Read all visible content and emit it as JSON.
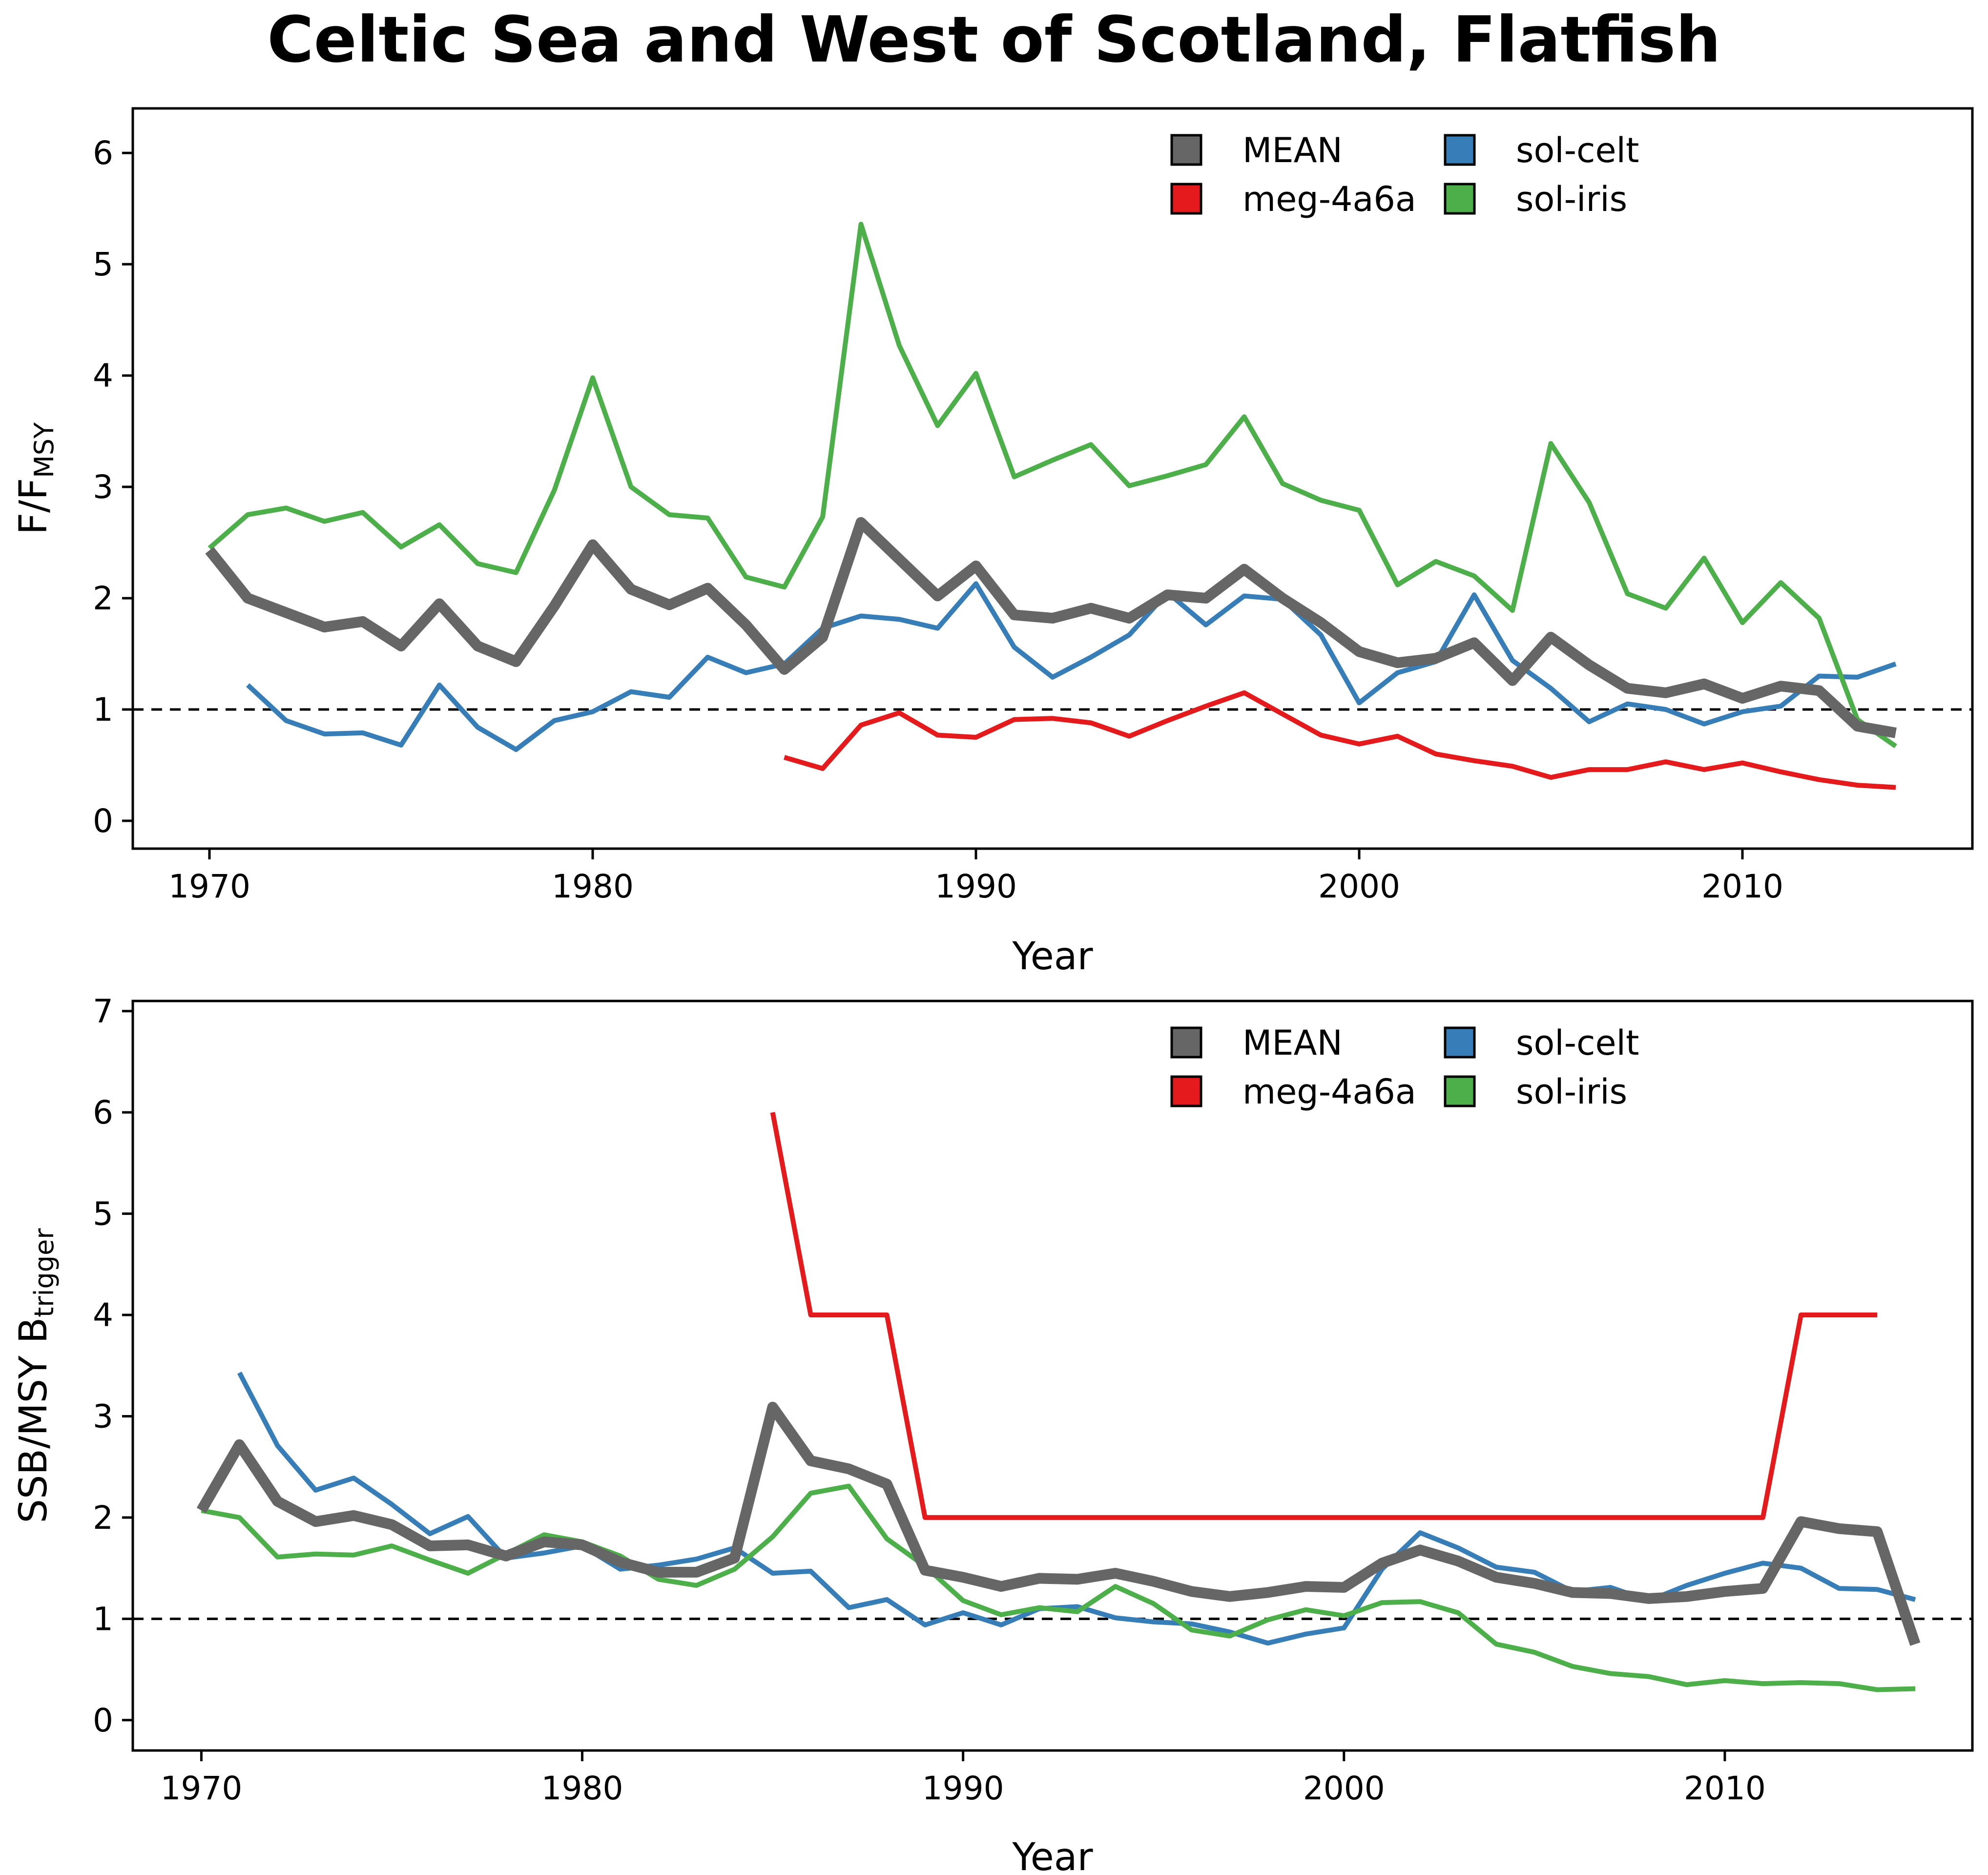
{
  "title": "Celtic Sea and West of Scotland, Flatfish",
  "chart_data": [
    {
      "type": "line",
      "xlabel": "Year",
      "ylabel_main": "F/F",
      "ylabel_sub": "MSY",
      "xlim": [
        1968,
        2016
      ],
      "ylim": [
        -0.25,
        6.4
      ],
      "xticks": [
        1970,
        1980,
        1990,
        2000,
        2010
      ],
      "yticks": [
        0,
        1,
        2,
        3,
        4,
        5,
        6
      ],
      "reference_line": 1,
      "legend_position": "top-right",
      "series": [
        {
          "name": "MEAN",
          "color": "#666666",
          "width": 22,
          "x": [
            1970,
            1971,
            1972,
            1973,
            1974,
            1975,
            1976,
            1977,
            1978,
            1979,
            1980,
            1981,
            1982,
            1983,
            1984,
            1985,
            1986,
            1987,
            1988,
            1989,
            1990,
            1991,
            1992,
            1993,
            1994,
            1995,
            1996,
            1997,
            1998,
            1999,
            2000,
            2001,
            2002,
            2003,
            2004,
            2005,
            2006,
            2007,
            2008,
            2009,
            2010,
            2011,
            2012,
            2013,
            2014
          ],
          "y": [
            2.43,
            2.0,
            1.87,
            1.74,
            1.79,
            1.57,
            1.95,
            1.57,
            1.43,
            1.93,
            2.48,
            2.08,
            1.94,
            2.09,
            1.76,
            1.36,
            1.65,
            2.68,
            2.35,
            2.02,
            2.29,
            1.85,
            1.82,
            1.91,
            1.82,
            2.03,
            2.0,
            2.26,
            2.0,
            1.78,
            1.52,
            1.42,
            1.46,
            1.6,
            1.26,
            1.65,
            1.4,
            1.19,
            1.15,
            1.23,
            1.1,
            1.21,
            1.17,
            0.85,
            0.79
          ]
        },
        {
          "name": "meg-4a6a",
          "color": "#e41a1c",
          "width": 10,
          "x": [
            1985,
            1986,
            1987,
            1988,
            1989,
            1990,
            1991,
            1992,
            1993,
            1994,
            1995,
            1996,
            1997,
            1998,
            1999,
            2000,
            2001,
            2002,
            2003,
            2004,
            2005,
            2006,
            2007,
            2008,
            2009,
            2010,
            2011,
            2012,
            2013,
            2014
          ],
          "y": [
            0.57,
            0.47,
            0.86,
            0.97,
            0.77,
            0.75,
            0.91,
            0.92,
            0.88,
            0.76,
            0.9,
            1.03,
            1.15,
            0.96,
            0.77,
            0.69,
            0.76,
            0.6,
            0.54,
            0.49,
            0.39,
            0.46,
            0.46,
            0.53,
            0.46,
            0.52,
            0.44,
            0.37,
            0.32,
            0.3
          ]
        },
        {
          "name": "sol-celt",
          "color": "#377eb8",
          "width": 10,
          "x": [
            1971,
            1972,
            1973,
            1974,
            1975,
            1976,
            1977,
            1978,
            1979,
            1980,
            1981,
            1982,
            1983,
            1984,
            1985,
            1986,
            1987,
            1988,
            1989,
            1990,
            1991,
            1992,
            1993,
            1994,
            1995,
            1996,
            1997,
            1998,
            1999,
            2000,
            2001,
            2002,
            2003,
            2004,
            2005,
            2006,
            2007,
            2008,
            2009,
            2010,
            2011,
            2012,
            2013,
            2014
          ],
          "y": [
            1.22,
            0.9,
            0.78,
            0.79,
            0.68,
            1.22,
            0.84,
            0.64,
            0.9,
            0.98,
            1.16,
            1.11,
            1.47,
            1.33,
            1.41,
            1.73,
            1.84,
            1.81,
            1.73,
            2.13,
            1.56,
            1.29,
            1.47,
            1.67,
            2.05,
            1.76,
            2.02,
            1.99,
            1.67,
            1.06,
            1.33,
            1.43,
            2.03,
            1.44,
            1.19,
            0.89,
            1.05,
            1.0,
            0.87,
            0.98,
            1.03,
            1.3,
            1.29,
            1.41
          ]
        },
        {
          "name": "sol-iris",
          "color": "#4daf4a",
          "width": 10,
          "x": [
            1970,
            1971,
            1972,
            1973,
            1974,
            1975,
            1976,
            1977,
            1978,
            1979,
            1980,
            1981,
            1982,
            1983,
            1984,
            1985,
            1986,
            1987,
            1988,
            1989,
            1990,
            1991,
            1992,
            1993,
            1994,
            1995,
            1996,
            1997,
            1998,
            1999,
            2000,
            2001,
            2002,
            2003,
            2004,
            2005,
            2006,
            2007,
            2008,
            2009,
            2010,
            2011,
            2012,
            2013,
            2014
          ],
          "y": [
            2.45,
            2.75,
            2.81,
            2.69,
            2.77,
            2.46,
            2.66,
            2.31,
            2.23,
            2.97,
            3.98,
            3.0,
            2.75,
            2.72,
            2.19,
            2.1,
            2.73,
            5.36,
            4.27,
            3.55,
            4.02,
            3.09,
            3.24,
            3.38,
            3.01,
            3.1,
            3.2,
            3.63,
            3.03,
            2.88,
            2.79,
            2.12,
            2.33,
            2.2,
            1.89,
            3.39,
            2.86,
            2.04,
            1.91,
            2.36,
            1.78,
            2.14,
            1.82,
            0.91,
            0.67
          ]
        }
      ]
    },
    {
      "type": "line",
      "xlabel": "Year",
      "ylabel_main": "SSB/MSY B",
      "ylabel_sub": "trigger",
      "xlim": [
        1968.2,
        2016.5
      ],
      "ylim": [
        -0.3,
        7.1
      ],
      "xticks": [
        1970,
        1980,
        1990,
        2000,
        2010
      ],
      "yticks": [
        0,
        1,
        2,
        3,
        4,
        5,
        6,
        7
      ],
      "reference_line": 1,
      "legend_position": "top-right",
      "series": [
        {
          "name": "MEAN",
          "color": "#666666",
          "width": 22,
          "x": [
            1970,
            1971,
            1972,
            1973,
            1974,
            1975,
            1976,
            1977,
            1978,
            1979,
            1980,
            1981,
            1982,
            1983,
            1984,
            1985,
            1986,
            1987,
            1988,
            1989,
            1990,
            1991,
            1992,
            1993,
            1994,
            1995,
            1996,
            1997,
            1998,
            1999,
            2000,
            2001,
            2002,
            2003,
            2004,
            2005,
            2006,
            2007,
            2008,
            2009,
            2010,
            2011,
            2012,
            2013,
            2014,
            2015
          ],
          "y": [
            2.07,
            2.72,
            2.16,
            1.96,
            2.02,
            1.93,
            1.72,
            1.73,
            1.62,
            1.76,
            1.73,
            1.56,
            1.46,
            1.46,
            1.6,
            3.09,
            2.56,
            2.48,
            2.33,
            1.48,
            1.41,
            1.32,
            1.4,
            1.39,
            1.45,
            1.37,
            1.27,
            1.22,
            1.26,
            1.32,
            1.31,
            1.55,
            1.68,
            1.57,
            1.41,
            1.35,
            1.26,
            1.25,
            1.2,
            1.22,
            1.27,
            1.3,
            1.96,
            1.89,
            1.86,
            0.75
          ]
        },
        {
          "name": "meg-4a6a",
          "color": "#e41a1c",
          "width": 10,
          "x": [
            1985,
            1986,
            1987,
            1988,
            1989,
            1990,
            1991,
            1992,
            1993,
            1994,
            1995,
            1996,
            1997,
            1998,
            1999,
            2000,
            2001,
            2002,
            2003,
            2004,
            2005,
            2006,
            2007,
            2008,
            2009,
            2010,
            2011,
            2012,
            2013,
            2014
          ],
          "y": [
            6,
            4,
            4,
            4,
            2,
            2,
            2,
            2,
            2,
            2,
            2,
            2,
            2,
            2,
            2,
            2,
            2,
            2,
            2,
            2,
            2,
            2,
            2,
            2,
            2,
            2,
            2,
            4,
            4,
            4
          ]
        },
        {
          "name": "sol-celt",
          "color": "#377eb8",
          "width": 10,
          "x": [
            1971,
            1972,
            1973,
            1974,
            1975,
            1976,
            1977,
            1978,
            1979,
            1980,
            1981,
            1982,
            1983,
            1984,
            1985,
            1986,
            1987,
            1988,
            1989,
            1990,
            1991,
            1992,
            1993,
            1994,
            1995,
            1996,
            1997,
            1998,
            1999,
            2000,
            2001,
            2002,
            2003,
            2004,
            2005,
            2006,
            2007,
            2008,
            2009,
            2010,
            2011,
            2012,
            2013,
            2014,
            2015
          ],
          "y": [
            3.43,
            2.71,
            2.27,
            2.39,
            2.13,
            1.84,
            2.01,
            1.6,
            1.65,
            1.72,
            1.49,
            1.53,
            1.59,
            1.7,
            1.45,
            1.47,
            1.11,
            1.19,
            0.94,
            1.06,
            0.94,
            1.1,
            1.12,
            1.01,
            0.97,
            0.95,
            0.87,
            0.76,
            0.85,
            0.91,
            1.49,
            1.85,
            1.7,
            1.51,
            1.46,
            1.27,
            1.31,
            1.18,
            1.33,
            1.45,
            1.55,
            1.5,
            1.3,
            1.29,
            1.19
          ]
        },
        {
          "name": "sol-iris",
          "color": "#4daf4a",
          "width": 10,
          "x": [
            1970,
            1971,
            1972,
            1973,
            1974,
            1975,
            1976,
            1977,
            1978,
            1979,
            1980,
            1981,
            1982,
            1983,
            1984,
            1985,
            1986,
            1987,
            1988,
            1989,
            1990,
            1991,
            1992,
            1993,
            1994,
            1995,
            1996,
            1997,
            1998,
            1999,
            2000,
            2001,
            2002,
            2003,
            2004,
            2005,
            2006,
            2007,
            2008,
            2009,
            2010,
            2011,
            2012,
            2013,
            2014,
            2015
          ],
          "y": [
            2.07,
            2.0,
            1.61,
            1.64,
            1.63,
            1.72,
            1.58,
            1.45,
            1.64,
            1.83,
            1.76,
            1.62,
            1.39,
            1.33,
            1.49,
            1.81,
            2.24,
            2.31,
            1.79,
            1.52,
            1.18,
            1.04,
            1.11,
            1.07,
            1.32,
            1.15,
            0.89,
            0.83,
            0.99,
            1.09,
            1.03,
            1.16,
            1.17,
            1.06,
            0.75,
            0.67,
            0.53,
            0.46,
            0.43,
            0.35,
            0.39,
            0.36,
            0.37,
            0.36,
            0.3,
            0.31
          ]
        }
      ]
    }
  ]
}
